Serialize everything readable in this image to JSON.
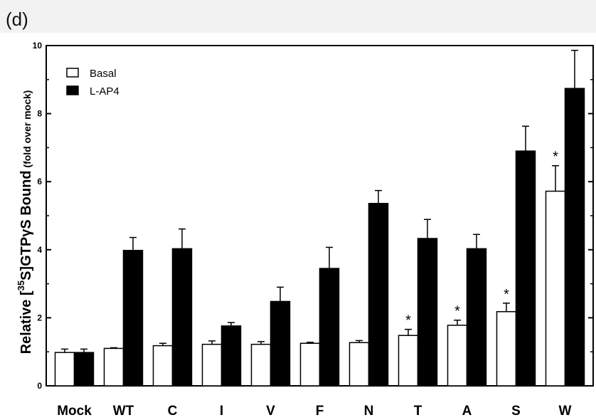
{
  "figure": {
    "panel_label": "(d)"
  },
  "chart_data": {
    "type": "bar",
    "categories": [
      "Mock",
      "WT",
      "C",
      "I",
      "V",
      "F",
      "N",
      "T",
      "A",
      "S",
      "W"
    ],
    "series": [
      {
        "name": "Basal",
        "color": "#ffffff",
        "values": [
          0.98,
          1.1,
          1.18,
          1.22,
          1.22,
          1.25,
          1.27,
          1.48,
          1.78,
          2.18,
          5.72
        ],
        "errors": [
          0.1,
          0.02,
          0.07,
          0.1,
          0.08,
          0.03,
          0.06,
          0.18,
          0.15,
          0.25,
          0.75
        ]
      },
      {
        "name": "L-AP4",
        "color": "#000000",
        "values": [
          0.98,
          3.98,
          4.03,
          1.76,
          2.48,
          3.45,
          5.36,
          4.33,
          4.03,
          6.9,
          8.74
        ],
        "errors": [
          0.1,
          0.38,
          0.58,
          0.1,
          0.42,
          0.62,
          0.38,
          0.56,
          0.42,
          0.73,
          1.12
        ]
      }
    ],
    "significance_markers": [
      {
        "category": "T",
        "series": "Basal",
        "symbol": "*"
      },
      {
        "category": "A",
        "series": "Basal",
        "symbol": "*"
      },
      {
        "category": "S",
        "series": "Basal",
        "symbol": "*"
      },
      {
        "category": "W",
        "series": "Basal",
        "symbol": "*"
      }
    ],
    "ylabel": {
      "prefix": "Relative [",
      "superscript": "35",
      "main": "S]GTPγS Bound",
      "suffix": " (fold over mock)"
    },
    "xlabel": "",
    "ylim": [
      0,
      10
    ],
    "yticks": [
      "0",
      "2",
      "4",
      "6",
      "8",
      "10"
    ],
    "legend_position": "top-left",
    "grid": false
  }
}
